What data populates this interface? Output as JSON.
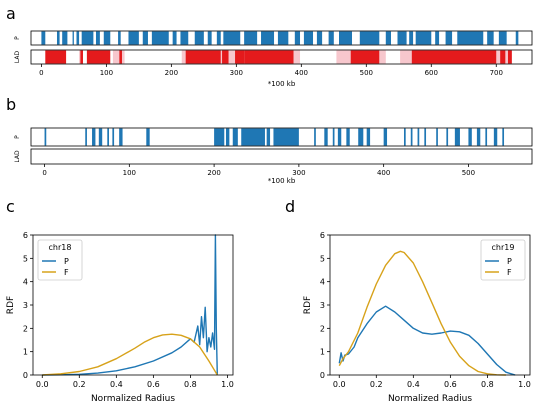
{
  "panel_labels": {
    "a": "a",
    "b": "b",
    "c": "c",
    "d": "d"
  },
  "colors": {
    "blue": "#1f77b4",
    "red": "#e41a1c",
    "orange": "#d7a21a",
    "lad_shade": "#f7c7cd"
  },
  "chart_data": [
    {
      "type": "track",
      "panel": "a",
      "rows": [
        "P",
        "LAD"
      ],
      "xlim": [
        -16,
        755
      ],
      "xticks": [
        0,
        100,
        200,
        300,
        400,
        500,
        600,
        700
      ],
      "xlabel": "*100 kb",
      "p_segments": [
        [
          0,
          6
        ],
        [
          24,
          28
        ],
        [
          32,
          40
        ],
        [
          48,
          50
        ],
        [
          54,
          58
        ],
        [
          62,
          80
        ],
        [
          84,
          90
        ],
        [
          96,
          106
        ],
        [
          118,
          122
        ],
        [
          134,
          150
        ],
        [
          156,
          164
        ],
        [
          170,
          196
        ],
        [
          202,
          208
        ],
        [
          214,
          226
        ],
        [
          236,
          250
        ],
        [
          256,
          262
        ],
        [
          270,
          276
        ],
        [
          280,
          306
        ],
        [
          312,
          332
        ],
        [
          338,
          358
        ],
        [
          364,
          380
        ],
        [
          390,
          398
        ],
        [
          404,
          418
        ],
        [
          424,
          432
        ],
        [
          442,
          450
        ],
        [
          458,
          478
        ],
        [
          490,
          520
        ],
        [
          530,
          538
        ],
        [
          548,
          562
        ],
        [
          566,
          572
        ],
        [
          576,
          600
        ],
        [
          606,
          612
        ],
        [
          622,
          632
        ],
        [
          640,
          680
        ],
        [
          686,
          696
        ],
        [
          704,
          716
        ],
        [
          730,
          734
        ]
      ],
      "lad_segments": [
        [
          6,
          38
        ],
        [
          60,
          64
        ],
        [
          70,
          106
        ],
        [
          120,
          124
        ],
        [
          222,
          276
        ],
        [
          278,
          288
        ],
        [
          298,
          312
        ],
        [
          312,
          388
        ],
        [
          476,
          520
        ],
        [
          570,
          700
        ],
        [
          706,
          714
        ],
        [
          718,
          724
        ]
      ],
      "lad_shade_segments": [
        [
          10,
          12
        ],
        [
          58,
          62
        ],
        [
          110,
          128
        ],
        [
          216,
          222
        ],
        [
          276,
          278
        ],
        [
          288,
          298
        ],
        [
          388,
          398
        ],
        [
          454,
          476
        ],
        [
          520,
          530
        ],
        [
          552,
          570
        ],
        [
          700,
          706
        ],
        [
          714,
          718
        ]
      ]
    },
    {
      "type": "track",
      "panel": "b",
      "rows": [
        "P",
        "LAD"
      ],
      "xlim": [
        -16,
        575
      ],
      "xticks": [
        0,
        100,
        200,
        300,
        400,
        500
      ],
      "xlabel": "*100 kb",
      "p_segments": [
        [
          0,
          2
        ],
        [
          48,
          50
        ],
        [
          56,
          60
        ],
        [
          64,
          68
        ],
        [
          74,
          76
        ],
        [
          80,
          82
        ],
        [
          88,
          92
        ],
        [
          120,
          124
        ],
        [
          200,
          212
        ],
        [
          214,
          218
        ],
        [
          222,
          228
        ],
        [
          232,
          260
        ],
        [
          262,
          266
        ],
        [
          270,
          300
        ],
        [
          318,
          320
        ],
        [
          330,
          334
        ],
        [
          340,
          342
        ],
        [
          346,
          350
        ],
        [
          356,
          360
        ],
        [
          370,
          376
        ],
        [
          380,
          384
        ],
        [
          400,
          404
        ],
        [
          424,
          426
        ],
        [
          432,
          434
        ],
        [
          440,
          442
        ],
        [
          448,
          450
        ],
        [
          462,
          464
        ],
        [
          474,
          476
        ],
        [
          484,
          490
        ],
        [
          500,
          504
        ],
        [
          510,
          514
        ],
        [
          520,
          522
        ],
        [
          530,
          534
        ],
        [
          540,
          542
        ]
      ],
      "lad_segments": []
    },
    {
      "type": "line",
      "panel": "c",
      "title": "",
      "xlabel": "Normalized Radius",
      "ylabel": "RDF",
      "xlim": [
        -0.05,
        1.03
      ],
      "ylim": [
        0,
        6
      ],
      "xticks": [
        0.0,
        0.2,
        0.4,
        0.6,
        0.8,
        1.0
      ],
      "yticks": [
        0,
        1,
        2,
        3,
        4,
        5,
        6
      ],
      "legend": {
        "title": "chr18",
        "placement": "top-left"
      },
      "series": [
        {
          "name": "P",
          "color": "#1f77b4",
          "x": [
            0.0,
            0.1,
            0.2,
            0.3,
            0.4,
            0.5,
            0.6,
            0.7,
            0.75,
            0.8,
            0.82,
            0.84,
            0.85,
            0.86,
            0.87,
            0.88,
            0.89,
            0.9,
            0.91,
            0.92,
            0.93,
            0.935,
            0.94,
            0.945
          ],
          "y": [
            0.0,
            0.01,
            0.03,
            0.08,
            0.18,
            0.35,
            0.6,
            0.95,
            1.2,
            1.55,
            1.4,
            2.1,
            1.3,
            2.5,
            1.6,
            2.9,
            1.0,
            1.6,
            1.2,
            1.8,
            1.1,
            6.0,
            2.0,
            0.0
          ]
        },
        {
          "name": "F",
          "color": "#d7a21a",
          "x": [
            0.0,
            0.1,
            0.2,
            0.3,
            0.4,
            0.5,
            0.55,
            0.6,
            0.65,
            0.7,
            0.75,
            0.8,
            0.85,
            0.9,
            0.93,
            0.945
          ],
          "y": [
            0.0,
            0.05,
            0.15,
            0.35,
            0.7,
            1.15,
            1.4,
            1.6,
            1.72,
            1.75,
            1.7,
            1.55,
            1.2,
            0.6,
            0.2,
            0.0
          ]
        }
      ]
    },
    {
      "type": "line",
      "panel": "d",
      "title": "",
      "xlabel": "Normalized Radius",
      "ylabel": "RDF",
      "xlim": [
        -0.05,
        1.03
      ],
      "ylim": [
        0,
        6
      ],
      "xticks": [
        0.0,
        0.2,
        0.4,
        0.6,
        0.8,
        1.0
      ],
      "yticks": [
        0,
        1,
        2,
        3,
        4,
        5,
        6
      ],
      "legend": {
        "title": "chr19",
        "placement": "top-right"
      },
      "series": [
        {
          "name": "P",
          "color": "#1f77b4",
          "x": [
            0.0,
            0.01,
            0.02,
            0.03,
            0.05,
            0.08,
            0.1,
            0.15,
            0.2,
            0.25,
            0.3,
            0.35,
            0.4,
            0.45,
            0.5,
            0.55,
            0.6,
            0.65,
            0.7,
            0.75,
            0.8,
            0.85,
            0.9,
            0.95
          ],
          "y": [
            0.5,
            0.95,
            0.6,
            0.85,
            0.9,
            1.2,
            1.6,
            2.2,
            2.7,
            2.95,
            2.7,
            2.35,
            2.0,
            1.8,
            1.75,
            1.8,
            1.88,
            1.85,
            1.7,
            1.35,
            0.9,
            0.45,
            0.12,
            0.0
          ]
        },
        {
          "name": "F",
          "color": "#d7a21a",
          "x": [
            0.0,
            0.02,
            0.05,
            0.1,
            0.15,
            0.2,
            0.25,
            0.3,
            0.33,
            0.35,
            0.4,
            0.45,
            0.5,
            0.55,
            0.6,
            0.65,
            0.7,
            0.75,
            0.8,
            0.85,
            0.9
          ],
          "y": [
            0.4,
            0.7,
            1.0,
            1.8,
            2.9,
            3.9,
            4.7,
            5.2,
            5.3,
            5.25,
            4.8,
            4.0,
            3.1,
            2.2,
            1.4,
            0.8,
            0.4,
            0.15,
            0.05,
            0.01,
            0.0
          ]
        }
      ]
    }
  ]
}
